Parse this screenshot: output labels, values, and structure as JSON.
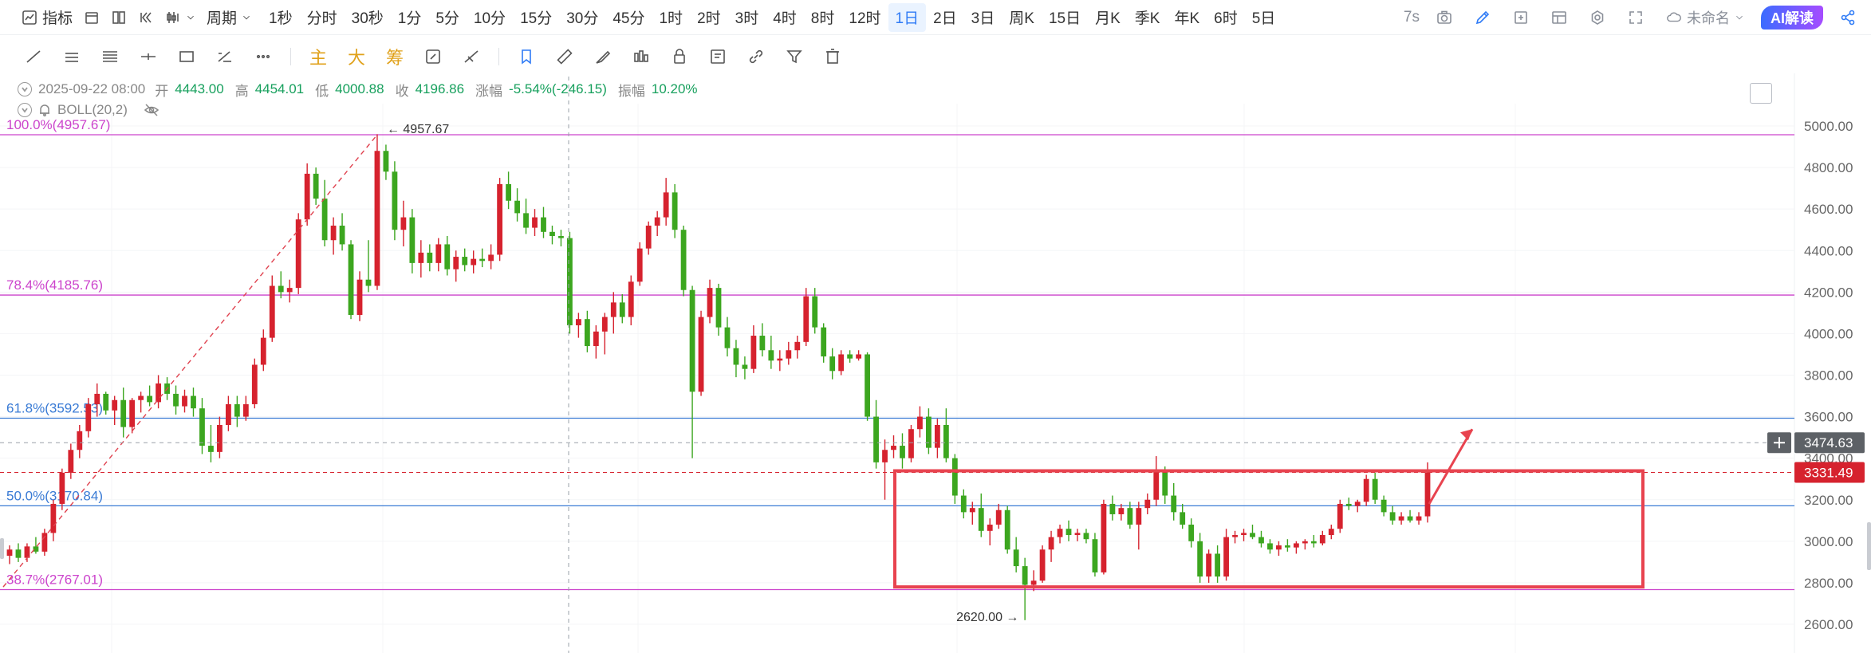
{
  "topbar": {
    "indicators_label": "指标",
    "period_label": "周期",
    "periods": [
      "1秒",
      "分时",
      "30秒",
      "1分",
      "5分",
      "10分",
      "15分",
      "30分",
      "45分",
      "1时",
      "2时",
      "3时",
      "4时",
      "8时",
      "12时",
      "1日",
      "2日",
      "3日",
      "周K",
      "15日",
      "月K",
      "季K",
      "年K",
      "6时",
      "5日"
    ],
    "active_period": "1日",
    "refresh_label": "7s",
    "cloud_label": "未命名",
    "ai_label": "AI解读"
  },
  "drawbar": {
    "main_label": "主",
    "big_label": "大",
    "chip_label": "筹"
  },
  "info": {
    "date": "2025-09-22 08:00",
    "open_label": "开",
    "open": "4443.00",
    "high_label": "高",
    "high": "4454.01",
    "low_label": "低",
    "low": "4000.88",
    "close_label": "收",
    "close": "4196.86",
    "change_label": "涨幅",
    "change": "-5.54%(-246.15)",
    "amplitude_label": "振幅",
    "amplitude": "10.20%",
    "indicator": "BOLL(20,2)"
  },
  "chart_data": {
    "type": "candlestick",
    "yaxis_ticks": [
      "5000.00",
      "4800.00",
      "4600.00",
      "4400.00",
      "4200.00",
      "4000.00",
      "3800.00",
      "3600.00",
      "3400.00",
      "3200.00",
      "3000.00",
      "2800.00",
      "2600.00"
    ],
    "ylim": [
      2520,
      5100
    ],
    "fib_levels": [
      {
        "label": "100.0%(4957.67)",
        "value": 4957.67,
        "color": "#cc44cc"
      },
      {
        "label": "78.4%(4185.76)",
        "value": 4185.76,
        "color": "#cc44cc"
      },
      {
        "label": "61.8%(3592.53)",
        "value": 3592.53,
        "color": "#3a7bd5"
      },
      {
        "label": "50.0%(3170.84)",
        "value": 3170.84,
        "color": "#3a7bd5"
      },
      {
        "label": "38.7%(2767.01)",
        "value": 2767.01,
        "color": "#cc44cc"
      }
    ],
    "high_mark": "4957.67",
    "low_mark": "2620.00",
    "crosshair_price": "3474.63",
    "current_price": "3331.49",
    "colors": {
      "up": "#d6222e",
      "down": "#3ca61f",
      "box": "#e8434f",
      "crosshair_tag": "#5d6166",
      "price_tag": "#d6222e"
    },
    "candles": [
      [
        2930,
        2980,
        2890,
        2960
      ],
      [
        2960,
        2990,
        2900,
        2920
      ],
      [
        2920,
        2990,
        2900,
        2975
      ],
      [
        2975,
        3020,
        2940,
        2950
      ],
      [
        2950,
        3060,
        2930,
        3040
      ],
      [
        3040,
        3200,
        3000,
        3180
      ],
      [
        3180,
        3350,
        3150,
        3330
      ],
      [
        3330,
        3470,
        3300,
        3440
      ],
      [
        3440,
        3560,
        3400,
        3530
      ],
      [
        3530,
        3690,
        3500,
        3660
      ],
      [
        3660,
        3760,
        3600,
        3710
      ],
      [
        3710,
        3720,
        3610,
        3630
      ],
      [
        3630,
        3700,
        3560,
        3680
      ],
      [
        3680,
        3740,
        3500,
        3550
      ],
      [
        3550,
        3690,
        3520,
        3680
      ],
      [
        3680,
        3720,
        3620,
        3700
      ],
      [
        3700,
        3750,
        3650,
        3670
      ],
      [
        3670,
        3800,
        3640,
        3760
      ],
      [
        3760,
        3790,
        3680,
        3710
      ],
      [
        3710,
        3750,
        3610,
        3650
      ],
      [
        3650,
        3730,
        3620,
        3700
      ],
      [
        3700,
        3740,
        3600,
        3640
      ],
      [
        3640,
        3690,
        3420,
        3460
      ],
      [
        3460,
        3560,
        3380,
        3430
      ],
      [
        3430,
        3600,
        3400,
        3560
      ],
      [
        3560,
        3700,
        3530,
        3660
      ],
      [
        3660,
        3700,
        3550,
        3600
      ],
      [
        3600,
        3700,
        3580,
        3660
      ],
      [
        3660,
        3880,
        3640,
        3850
      ],
      [
        3850,
        4020,
        3820,
        3980
      ],
      [
        3980,
        4280,
        3960,
        4230
      ],
      [
        4230,
        4300,
        4170,
        4200
      ],
      [
        4200,
        4260,
        4150,
        4220
      ],
      [
        4220,
        4580,
        4190,
        4550
      ],
      [
        4550,
        4820,
        4520,
        4770
      ],
      [
        4770,
        4800,
        4620,
        4650
      ],
      [
        4650,
        4740,
        4420,
        4450
      ],
      [
        4450,
        4560,
        4380,
        4520
      ],
      [
        4520,
        4580,
        4400,
        4430
      ],
      [
        4430,
        4450,
        4070,
        4090
      ],
      [
        4090,
        4300,
        4060,
        4260
      ],
      [
        4260,
        4450,
        4200,
        4230
      ],
      [
        4230,
        4960,
        4210,
        4880
      ],
      [
        4880,
        4910,
        4740,
        4780
      ],
      [
        4780,
        4830,
        4450,
        4500
      ],
      [
        4500,
        4640,
        4420,
        4560
      ],
      [
        4560,
        4600,
        4290,
        4340
      ],
      [
        4340,
        4450,
        4270,
        4390
      ],
      [
        4390,
        4430,
        4300,
        4340
      ],
      [
        4340,
        4460,
        4300,
        4430
      ],
      [
        4430,
        4470,
        4280,
        4310
      ],
      [
        4310,
        4400,
        4250,
        4370
      ],
      [
        4370,
        4410,
        4300,
        4330
      ],
      [
        4330,
        4400,
        4290,
        4360
      ],
      [
        4360,
        4410,
        4320,
        4350
      ],
      [
        4350,
        4430,
        4310,
        4380
      ],
      [
        4380,
        4750,
        4350,
        4720
      ],
      [
        4720,
        4780,
        4600,
        4640
      ],
      [
        4640,
        4700,
        4540,
        4580
      ],
      [
        4580,
        4650,
        4480,
        4510
      ],
      [
        4510,
        4600,
        4470,
        4560
      ],
      [
        4560,
        4610,
        4460,
        4490
      ],
      [
        4490,
        4520,
        4430,
        4470
      ],
      [
        4470,
        4500,
        4420,
        4460
      ],
      [
        4460,
        4490,
        4000,
        4040
      ],
      [
        4040,
        4100,
        3980,
        4070
      ],
      [
        4070,
        4110,
        3910,
        3940
      ],
      [
        3940,
        4040,
        3880,
        4010
      ],
      [
        4010,
        4100,
        3900,
        4080
      ],
      [
        4080,
        4200,
        4000,
        4150
      ],
      [
        4150,
        4190,
        4050,
        4080
      ],
      [
        4080,
        4280,
        4040,
        4250
      ],
      [
        4250,
        4440,
        4230,
        4410
      ],
      [
        4410,
        4540,
        4380,
        4520
      ],
      [
        4520,
        4590,
        4470,
        4560
      ],
      [
        4560,
        4750,
        4520,
        4680
      ],
      [
        4680,
        4720,
        4460,
        4500
      ],
      [
        4500,
        4520,
        4180,
        4210
      ],
      [
        4210,
        4230,
        3400,
        3720
      ],
      [
        3720,
        4110,
        3700,
        4080
      ],
      [
        4080,
        4260,
        4050,
        4220
      ],
      [
        4220,
        4240,
        3990,
        4030
      ],
      [
        4030,
        4080,
        3890,
        3930
      ],
      [
        3930,
        3970,
        3790,
        3850
      ],
      [
        3850,
        3890,
        3780,
        3830
      ],
      [
        3830,
        4040,
        3810,
        3990
      ],
      [
        3990,
        4050,
        3890,
        3920
      ],
      [
        3920,
        3990,
        3830,
        3870
      ],
      [
        3870,
        3920,
        3820,
        3880
      ],
      [
        3880,
        3960,
        3850,
        3920
      ],
      [
        3920,
        3990,
        3880,
        3960
      ],
      [
        3960,
        4220,
        3940,
        4180
      ],
      [
        4180,
        4220,
        4000,
        4030
      ],
      [
        4030,
        4050,
        3860,
        3890
      ],
      [
        3890,
        3930,
        3780,
        3820
      ],
      [
        3820,
        3920,
        3800,
        3900
      ],
      [
        3900,
        3920,
        3860,
        3880
      ],
      [
        3880,
        3920,
        3870,
        3900
      ],
      [
        3900,
        3910,
        3580,
        3600
      ],
      [
        3600,
        3680,
        3350,
        3380
      ],
      [
        3380,
        3490,
        3200,
        3440
      ],
      [
        3440,
        3510,
        3400,
        3460
      ],
      [
        3460,
        3520,
        3350,
        3400
      ],
      [
        3400,
        3560,
        3380,
        3540
      ],
      [
        3540,
        3650,
        3500,
        3600
      ],
      [
        3600,
        3640,
        3420,
        3450
      ],
      [
        3450,
        3590,
        3400,
        3560
      ],
      [
        3560,
        3640,
        3380,
        3400
      ],
      [
        3400,
        3420,
        3180,
        3220
      ],
      [
        3220,
        3250,
        3110,
        3140
      ],
      [
        3140,
        3190,
        3080,
        3160
      ],
      [
        3160,
        3230,
        3020,
        3050
      ],
      [
        3050,
        3110,
        2980,
        3080
      ],
      [
        3080,
        3180,
        3060,
        3150
      ],
      [
        3150,
        3170,
        2940,
        2960
      ],
      [
        2960,
        3020,
        2850,
        2880
      ],
      [
        2880,
        2920,
        2620,
        2790
      ],
      [
        2790,
        2860,
        2760,
        2810
      ],
      [
        2810,
        2980,
        2800,
        2960
      ],
      [
        2960,
        3050,
        2900,
        3020
      ],
      [
        3020,
        3080,
        2990,
        3060
      ],
      [
        3060,
        3100,
        3000,
        3030
      ],
      [
        3030,
        3060,
        3000,
        3040
      ],
      [
        3040,
        3060,
        2990,
        3010
      ],
      [
        3010,
        3040,
        2830,
        2850
      ],
      [
        2850,
        3200,
        2840,
        3180
      ],
      [
        3180,
        3220,
        3100,
        3130
      ],
      [
        3130,
        3180,
        3100,
        3160
      ],
      [
        3160,
        3190,
        3060,
        3080
      ],
      [
        3080,
        3190,
        2960,
        3160
      ],
      [
        3160,
        3230,
        3130,
        3200
      ],
      [
        3200,
        3410,
        3170,
        3340
      ],
      [
        3340,
        3360,
        3180,
        3220
      ],
      [
        3220,
        3280,
        3100,
        3140
      ],
      [
        3140,
        3180,
        3060,
        3080
      ],
      [
        3080,
        3110,
        2970,
        3000
      ],
      [
        3000,
        3040,
        2800,
        2830
      ],
      [
        2830,
        2960,
        2800,
        2940
      ],
      [
        2940,
        2980,
        2800,
        2830
      ],
      [
        2830,
        3060,
        2810,
        3020
      ],
      [
        3020,
        3050,
        2990,
        3030
      ],
      [
        3030,
        3060,
        3000,
        3040
      ],
      [
        3040,
        3080,
        3010,
        3020
      ],
      [
        3020,
        3050,
        2970,
        2990
      ],
      [
        2990,
        3010,
        2940,
        2960
      ],
      [
        2960,
        3000,
        2930,
        2980
      ],
      [
        2980,
        3010,
        2950,
        2970
      ],
      [
        2970,
        3000,
        2940,
        2990
      ],
      [
        2990,
        3010,
        2960,
        3000
      ],
      [
        3000,
        3030,
        2970,
        2990
      ],
      [
        2990,
        3050,
        2980,
        3030
      ],
      [
        3030,
        3080,
        3010,
        3060
      ],
      [
        3060,
        3200,
        3040,
        3180
      ],
      [
        3180,
        3210,
        3150,
        3170
      ],
      [
        3170,
        3200,
        3140,
        3190
      ],
      [
        3190,
        3320,
        3170,
        3300
      ],
      [
        3300,
        3330,
        3180,
        3200
      ],
      [
        3200,
        3220,
        3120,
        3140
      ],
      [
        3140,
        3170,
        3080,
        3100
      ],
      [
        3100,
        3140,
        3080,
        3120
      ],
      [
        3120,
        3150,
        3090,
        3100
      ],
      [
        3100,
        3140,
        3080,
        3120
      ],
      [
        3120,
        3380,
        3090,
        3331
      ]
    ]
  }
}
